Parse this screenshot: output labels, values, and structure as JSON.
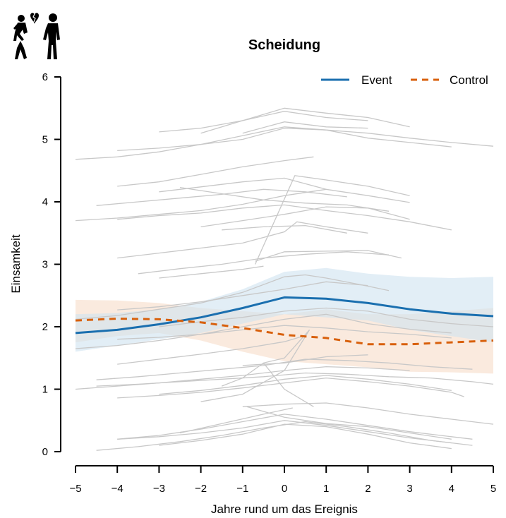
{
  "chart_data": {
    "type": "line",
    "title": "Scheidung",
    "xlabel": "Jahre rund um das Ereignis",
    "ylabel": "Einsamkeit",
    "xlim": [
      -5,
      5
    ],
    "ylim": [
      0,
      6
    ],
    "x_ticks": [
      "−5",
      "−4",
      "−3",
      "−2",
      "−1",
      "0",
      "1",
      "2",
      "3",
      "4",
      "5"
    ],
    "y_ticks": [
      "0",
      "1",
      "2",
      "3",
      "4",
      "5",
      "6"
    ],
    "legend_position": "top-right",
    "icon": "divorce-couple-icon",
    "colors": {
      "event": "#1a6faf",
      "control": "#d8600c",
      "event_band": "#cfe3f0",
      "control_band": "#f7dcc8",
      "background_lines": "#c8c8c8"
    },
    "series": [
      {
        "name": "Event",
        "style": "solid",
        "x": [
          -5,
          -4,
          -3,
          -2,
          -1,
          0,
          1,
          2,
          3,
          4,
          5
        ],
        "y": [
          1.9,
          1.95,
          2.04,
          2.15,
          2.3,
          2.47,
          2.45,
          2.38,
          2.28,
          2.21,
          2.17
        ],
        "ci_lower": [
          1.6,
          1.7,
          1.8,
          1.9,
          2.05,
          2.2,
          2.15,
          2.1,
          1.95,
          1.85,
          1.75
        ],
        "ci_upper": [
          2.2,
          2.22,
          2.28,
          2.4,
          2.6,
          2.88,
          2.94,
          2.85,
          2.8,
          2.78,
          2.8
        ]
      },
      {
        "name": "Control",
        "style": "dashed",
        "x": [
          -5,
          -4,
          -3,
          -2,
          -1,
          0,
          1,
          2,
          3,
          4,
          5
        ],
        "y": [
          2.1,
          2.13,
          2.12,
          2.07,
          1.98,
          1.87,
          1.82,
          1.72,
          1.72,
          1.75,
          1.78
        ],
        "ci_lower": [
          1.75,
          1.85,
          1.9,
          1.78,
          1.6,
          1.45,
          1.4,
          1.35,
          1.28,
          1.27,
          1.25
        ],
        "ci_upper": [
          2.43,
          2.42,
          2.38,
          2.3,
          2.25,
          2.2,
          2.28,
          2.2,
          2.2,
          2.25,
          2.3
        ]
      }
    ],
    "background_trajectories": [
      {
        "x": [
          -2,
          -1,
          0,
          1,
          2,
          3
        ],
        "y": [
          5.1,
          5.3,
          5.5,
          5.42,
          5.35,
          5.2
        ]
      },
      {
        "x": [
          -3,
          -2,
          -1,
          0,
          1,
          2
        ],
        "y": [
          5.12,
          5.18,
          5.3,
          5.45,
          5.35,
          5.3
        ]
      },
      {
        "x": [
          -1,
          0,
          1,
          2
        ],
        "y": [
          5.1,
          5.28,
          5.2,
          5.18
        ]
      },
      {
        "x": [
          -4,
          -3,
          -2,
          -1,
          0,
          1,
          2,
          3,
          4,
          5
        ],
        "y": [
          4.82,
          4.86,
          4.92,
          5.0,
          5.18,
          5.15,
          5.1,
          5.02,
          4.95,
          4.89
        ]
      },
      {
        "x": [
          -5,
          -4,
          -3,
          -2,
          -1,
          0,
          1,
          2,
          3,
          4
        ],
        "y": [
          4.68,
          4.72,
          4.8,
          4.92,
          5.06,
          5.2,
          5.15,
          5.02,
          4.95,
          4.88
        ]
      },
      {
        "x": [
          -4,
          -3,
          -2,
          -1,
          0,
          0.7
        ],
        "y": [
          4.25,
          4.32,
          4.44,
          4.56,
          4.66,
          4.72
        ]
      },
      {
        "x": [
          -3,
          -2,
          -1,
          0,
          1
        ],
        "y": [
          4.16,
          4.24,
          4.32,
          4.38,
          4.2
        ]
      },
      {
        "x": [
          -4.5,
          -3.5,
          -2.5,
          -1.5,
          -0.5,
          0.5,
          1.5
        ],
        "y": [
          3.94,
          4.0,
          4.06,
          4.12,
          4.2,
          4.16,
          4.08
        ]
      },
      {
        "x": [
          -5,
          -4,
          -3,
          -2,
          -1,
          0,
          1,
          2,
          3
        ],
        "y": [
          3.7,
          3.74,
          3.8,
          3.86,
          3.96,
          4.1,
          4.2,
          4.1,
          3.99
        ]
      },
      {
        "x": [
          -2.5,
          -1.5,
          -0.5,
          0.5,
          1.5,
          2.5
        ],
        "y": [
          4.23,
          4.13,
          4.03,
          3.98,
          3.95,
          3.85
        ]
      },
      {
        "x": [
          -4,
          -3,
          -2,
          -1,
          0,
          1,
          2,
          3,
          4
        ],
        "y": [
          3.72,
          3.78,
          3.82,
          3.9,
          3.95,
          3.86,
          3.78,
          3.68,
          3.55
        ]
      },
      {
        "x": [
          -2,
          -1,
          0,
          1,
          2,
          3
        ],
        "y": [
          3.6,
          3.7,
          3.8,
          3.92,
          3.9,
          3.72
        ]
      },
      {
        "x": [
          -1.5,
          -0.5,
          0.5,
          1.5
        ],
        "y": [
          3.55,
          3.6,
          3.62,
          3.5
        ]
      },
      {
        "x": [
          -4,
          -3,
          -2,
          -1,
          0,
          0.3,
          1,
          2
        ],
        "y": [
          3.1,
          3.18,
          3.26,
          3.34,
          3.52,
          3.68,
          3.6,
          3.5
        ]
      },
      {
        "x": [
          -3.5,
          -2.5,
          -1.5,
          -0.5,
          0.5,
          1.5,
          2.5
        ],
        "y": [
          2.85,
          2.93,
          3.0,
          3.1,
          3.16,
          3.2,
          3.15
        ]
      },
      {
        "x": [
          -0.7,
          0,
          1,
          2,
          2.8
        ],
        "y": [
          3.05,
          3.2,
          3.21,
          3.22,
          3.1
        ]
      },
      {
        "x": [
          -0.7,
          0.25,
          1,
          2,
          3
        ],
        "y": [
          3.0,
          4.42,
          4.35,
          4.25,
          4.1
        ]
      },
      {
        "x": [
          -3,
          -2,
          -1,
          -0.5
        ],
        "y": [
          2.78,
          2.85,
          2.92,
          2.97
        ]
      },
      {
        "x": [
          -5,
          -4,
          -3,
          -2,
          -1,
          0,
          0.5,
          1,
          2,
          2.5
        ],
        "y": [
          2.12,
          2.18,
          2.28,
          2.38,
          2.55,
          2.8,
          2.83,
          2.78,
          2.65,
          2.58
        ]
      },
      {
        "x": [
          -4,
          -3,
          -2,
          -1,
          0,
          1,
          2
        ],
        "y": [
          2.27,
          2.32,
          2.4,
          2.5,
          2.6,
          2.72,
          2.66
        ]
      },
      {
        "x": [
          -3,
          -2,
          -1,
          0,
          1,
          2,
          3,
          4,
          5
        ],
        "y": [
          2.0,
          2.08,
          2.15,
          2.25,
          2.3,
          2.25,
          2.12,
          2.05,
          2.0
        ]
      },
      {
        "x": [
          -5,
          -4,
          -3,
          -2,
          -1,
          0,
          1,
          2,
          3,
          4
        ],
        "y": [
          1.65,
          1.7,
          1.78,
          1.88,
          2.0,
          2.12,
          2.2,
          2.05,
          1.96,
          1.9
        ]
      },
      {
        "x": [
          -4,
          -3,
          -2,
          -1,
          0,
          1,
          2,
          3,
          4
        ],
        "y": [
          1.8,
          1.83,
          1.88,
          1.95,
          2.02,
          1.98,
          1.92,
          1.88,
          1.82
        ]
      },
      {
        "x": [
          -4,
          -3,
          -2,
          -1,
          0,
          0.5
        ],
        "y": [
          1.4,
          1.48,
          1.56,
          1.65,
          1.76,
          1.86
        ]
      },
      {
        "x": [
          -4.5,
          -3.5,
          -2.5,
          -1.5,
          -0.5,
          0.5,
          1.5,
          2.5,
          3.5,
          4.5
        ],
        "y": [
          1.15,
          1.2,
          1.26,
          1.32,
          1.38,
          1.48,
          1.46,
          1.42,
          1.36,
          1.32
        ]
      },
      {
        "x": [
          -5,
          -4,
          -3,
          -2,
          -1,
          0,
          1,
          2,
          3
        ],
        "y": [
          1.0,
          1.05,
          1.1,
          1.16,
          1.22,
          1.3,
          1.36,
          1.34,
          1.3
        ]
      },
      {
        "x": [
          -4.5,
          -3.5,
          -2.5,
          -1.5,
          -0.5,
          0.5,
          1.5,
          2.5,
          3.5,
          4.5,
          5
        ],
        "y": [
          1.05,
          1.08,
          1.12,
          1.16,
          1.2,
          1.26,
          1.24,
          1.2,
          1.18,
          1.12,
          1.08
        ]
      },
      {
        "x": [
          -4,
          -3,
          -2,
          -1,
          0,
          1,
          2,
          3,
          4,
          4.3
        ],
        "y": [
          0.86,
          0.9,
          0.95,
          1.02,
          1.1,
          1.18,
          1.12,
          1.05,
          0.95,
          0.88
        ]
      },
      {
        "x": [
          -3,
          -2,
          -1,
          0,
          1,
          2,
          3,
          4
        ],
        "y": [
          0.92,
          0.98,
          1.06,
          1.16,
          1.22,
          1.16,
          1.08,
          0.98
        ]
      },
      {
        "x": [
          -2,
          -1,
          0,
          0.6
        ],
        "y": [
          0.8,
          0.92,
          1.3,
          1.95
        ]
      },
      {
        "x": [
          -1,
          0,
          1,
          2
        ],
        "y": [
          1.38,
          1.42,
          1.52,
          1.55
        ]
      },
      {
        "x": [
          -1.5,
          -1,
          -0.5,
          0,
          0.6
        ],
        "y": [
          1.05,
          1.18,
          1.42,
          1.5,
          1.95
        ]
      },
      {
        "x": [
          -0.5,
          0,
          0.7
        ],
        "y": [
          1.42,
          1.0,
          0.72
        ]
      },
      {
        "x": [
          -4,
          -3,
          -2,
          -1,
          0,
          1,
          2,
          3,
          4,
          4.5
        ],
        "y": [
          0.2,
          0.26,
          0.36,
          0.48,
          0.6,
          0.52,
          0.42,
          0.32,
          0.24,
          0.2
        ]
      },
      {
        "x": [
          -4,
          -3,
          -2,
          -1,
          0,
          1,
          2,
          3,
          4
        ],
        "y": [
          0.2,
          0.24,
          0.3,
          0.38,
          0.5,
          0.42,
          0.32,
          0.22,
          0.14
        ]
      },
      {
        "x": [
          -4.5,
          -3.5,
          -2.5,
          -1.5,
          -0.5,
          0.5,
          1.5,
          2.5,
          3.5,
          4.5
        ],
        "y": [
          0.02,
          0.08,
          0.16,
          0.26,
          0.38,
          0.48,
          0.4,
          0.3,
          0.18,
          0.1
        ]
      },
      {
        "x": [
          -3,
          -2,
          -1,
          0,
          1,
          2,
          3,
          4
        ],
        "y": [
          0.1,
          0.18,
          0.28,
          0.44,
          0.4,
          0.28,
          0.14,
          0.05
        ]
      },
      {
        "x": [
          -1,
          0,
          1,
          2,
          3,
          4,
          5
        ],
        "y": [
          0.72,
          0.76,
          0.78,
          0.7,
          0.6,
          0.52,
          0.44
        ]
      },
      {
        "x": [
          -0.9,
          0,
          1,
          2,
          3,
          4
        ],
        "y": [
          0.72,
          0.55,
          0.45,
          0.4,
          0.3,
          0.2
        ]
      },
      {
        "x": [
          -2.5,
          -1.5,
          -0.5,
          0.2
        ],
        "y": [
          0.3,
          0.45,
          0.6,
          0.7
        ]
      }
    ]
  }
}
